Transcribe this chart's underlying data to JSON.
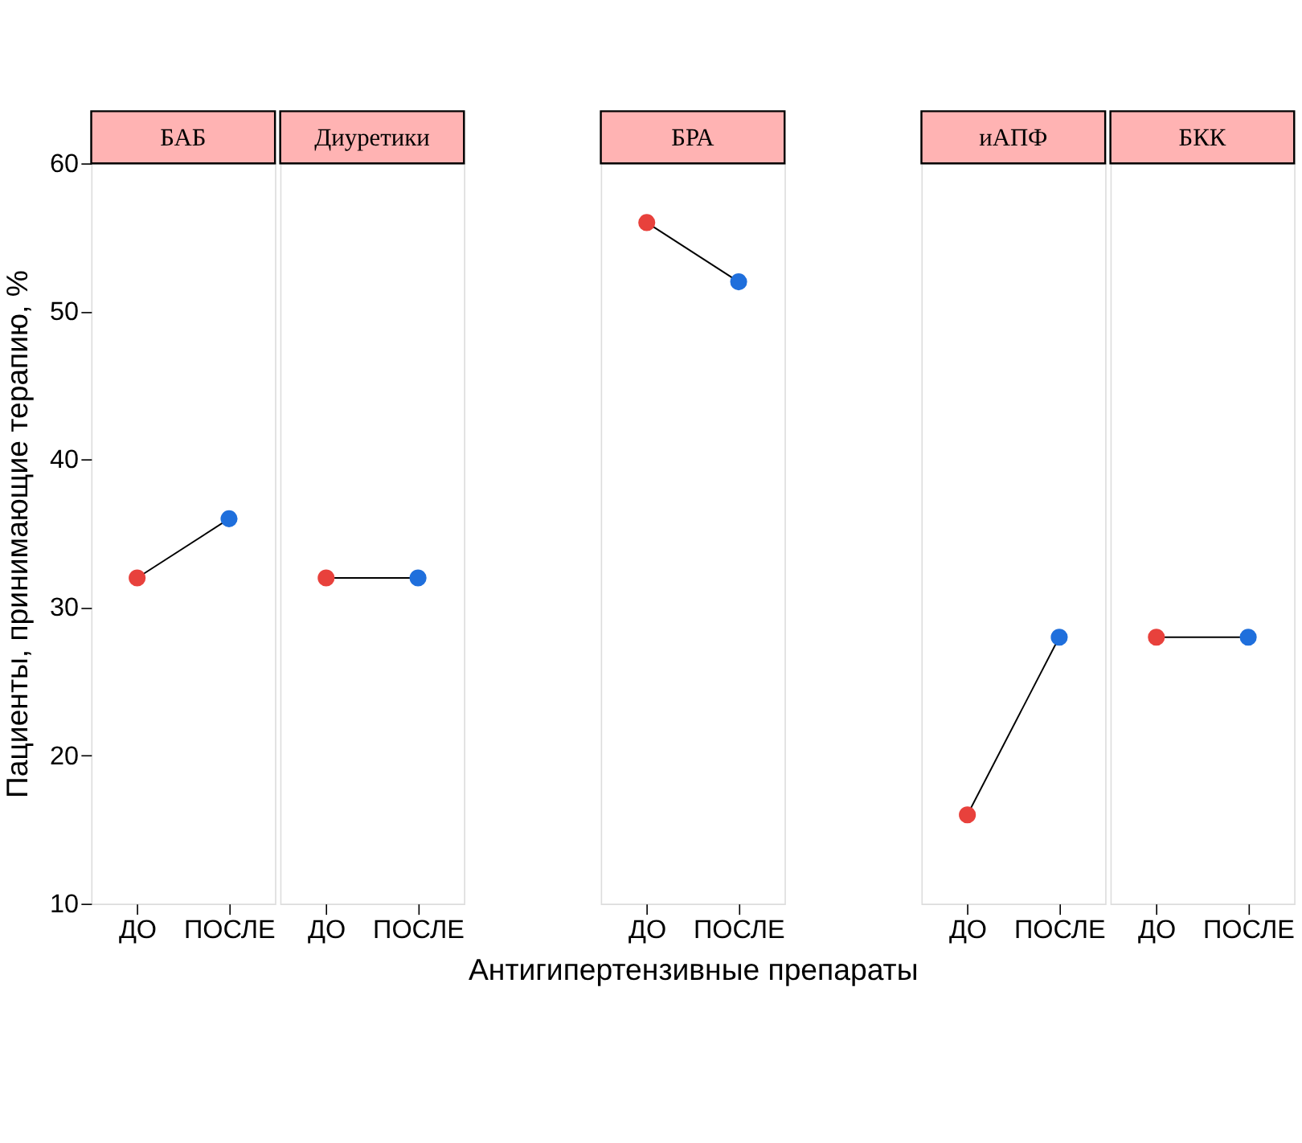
{
  "chart_data": [
    {
      "type": "line",
      "title": "БАБ",
      "ylabel": "Пациенты, принимающие терапию, %",
      "categories": [
        "ДО",
        "ПОСЛЕ"
      ],
      "ylim": [
        10,
        60
      ],
      "yticks": [
        10,
        20,
        30,
        40,
        50,
        60
      ],
      "grid": false,
      "marker": "circle",
      "line_style": "solid",
      "series": [
        {
          "color": "#000000",
          "colors": [
            "#e8413c",
            "#1f6fdc"
          ],
          "values": [
            32,
            36
          ]
        }
      ]
    },
    {
      "type": "line",
      "title": "Диуретики",
      "categories": [
        "ДО",
        "ПОСЛЕ"
      ],
      "ylim": [
        10,
        60
      ],
      "yticks": [
        10,
        20,
        30,
        40,
        50,
        60
      ],
      "grid": false,
      "marker": "circle",
      "line_style": "solid",
      "tick_labels": "x",
      "series": [
        {
          "color": "#000000",
          "colors": [
            "#e8413c",
            "#1f6fdc"
          ],
          "values": [
            32,
            32
          ]
        }
      ]
    },
    {
      "type": "line",
      "title": "БРА",
      "xlabel": "Антигипертензивные препараты",
      "categories": [
        "ДО",
        "ПОСЛЕ"
      ],
      "ylim": [
        10,
        60
      ],
      "yticks": [
        10,
        20,
        30,
        40,
        50,
        60
      ],
      "grid": false,
      "marker": "circle",
      "line_style": "solid",
      "tick_labels": "x",
      "series": [
        {
          "color": "#000000",
          "colors": [
            "#e8413c",
            "#1f6fdc"
          ],
          "values": [
            56,
            52
          ]
        }
      ]
    },
    {
      "type": "line",
      "title": "иАПФ",
      "categories": [
        "ДО",
        "ПОСЛЕ"
      ],
      "ylim": [
        10,
        60
      ],
      "yticks": [
        10,
        20,
        30,
        40,
        50,
        60
      ],
      "grid": false,
      "marker": "circle",
      "line_style": "solid",
      "tick_labels": "x",
      "series": [
        {
          "color": "#000000",
          "colors": [
            "#e8413c",
            "#1f6fdc"
          ],
          "values": [
            16,
            28
          ]
        }
      ]
    },
    {
      "type": "line",
      "title": "БКК",
      "categories": [
        "ДО",
        "ПОСЛЕ"
      ],
      "ylim": [
        10,
        60
      ],
      "yticks": [
        10,
        20,
        30,
        40,
        50,
        60
      ],
      "grid": false,
      "marker": "circle",
      "line_style": "solid",
      "tick_labels": "x",
      "series": [
        {
          "color": "#000000",
          "colors": [
            "#e8413c",
            "#1f6fdc"
          ],
          "values": [
            28,
            28
          ]
        }
      ]
    }
  ]
}
